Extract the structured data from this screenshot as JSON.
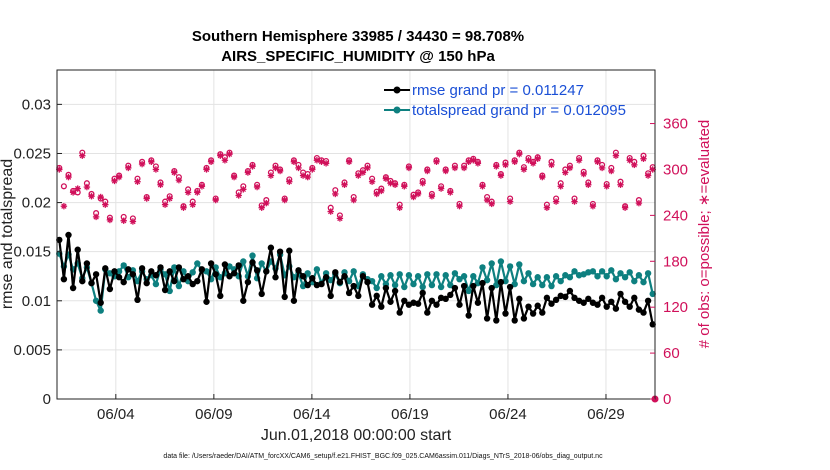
{
  "chart_data": {
    "type": "line",
    "title": "Southern Hemisphere 33985 / 34430 = 98.708%",
    "subtitle": "AIRS_SPECIFIC_HUMIDITY @ 150 hPa",
    "xlabel": "Jun.01,2018 00:00:00 start",
    "ylabel": "rmse and totalspread",
    "ylabel_right": "# of obs: o=possible; ∗=evaluated",
    "footer": "data file: /Users/raeder/DAI/ATM_forcXX/CAM6_setup/f.e21.FHIST_BGC.f09_025.CAM6assim.011/Diags_NTrS_2018-06/obs_diag_output.nc",
    "xlim": [
      1,
      31.5
    ],
    "ylim": [
      0,
      0.0335
    ],
    "ylim_right": [
      0,
      430
    ],
    "x_ticks": [
      4,
      9,
      14,
      19,
      24,
      29
    ],
    "x_tick_labels": [
      "06/04",
      "06/09",
      "06/14",
      "06/19",
      "06/24",
      "06/29"
    ],
    "y_ticks": [
      0,
      0.005,
      0.01,
      0.015,
      0.02,
      0.025,
      0.03
    ],
    "y_tick_labels": [
      "0",
      "0.005",
      "0.01",
      "0.015",
      "0.02",
      "0.025",
      "0.03"
    ],
    "y_right_ticks": [
      0,
      60,
      120,
      180,
      240,
      300,
      360
    ],
    "y_right_tick_labels": [
      "0",
      "60",
      "120",
      "180",
      "240",
      "300",
      "360"
    ],
    "grid": true,
    "legend_position": "top-right",
    "series": [
      {
        "name": "rmse grand pr = 0.011247",
        "color": "#000000",
        "axis": "left",
        "values": [
          0.0162,
          0.0122,
          0.0167,
          0.0113,
          0.0152,
          0.012,
          0.0138,
          0.0118,
          0.0127,
          0.0098,
          0.0133,
          0.0112,
          0.013,
          0.0124,
          0.0119,
          0.0132,
          0.0127,
          0.0101,
          0.0133,
          0.0118,
          0.013,
          0.0126,
          0.0134,
          0.0111,
          0.013,
          0.012,
          0.0134,
          0.0122,
          0.0125,
          0.0117,
          0.012,
          0.0132,
          0.0099,
          0.0138,
          0.0127,
          0.0105,
          0.0137,
          0.0125,
          0.0128,
          0.0136,
          0.01,
          0.0119,
          0.0139,
          0.0131,
          0.0107,
          0.013,
          0.0154,
          0.0124,
          0.015,
          0.0104,
          0.0151,
          0.01,
          0.0131,
          0.0125,
          0.0116,
          0.0123,
          0.0116,
          0.0117,
          0.0124,
          0.0105,
          0.0129,
          0.0119,
          0.0125,
          0.0108,
          0.0115,
          0.0105,
          0.0125,
          0.0119,
          0.0096,
          0.0105,
          0.0094,
          0.0113,
          0.0099,
          0.011,
          0.0088,
          0.01,
          0.0096,
          0.0098,
          0.0097,
          0.0108,
          0.0088,
          0.01,
          0.0096,
          0.0103,
          0.0102,
          0.0106,
          0.0113,
          0.0096,
          0.0115,
          0.0085,
          0.0115,
          0.0098,
          0.0118,
          0.0082,
          0.0113,
          0.008,
          0.0119,
          0.0087,
          0.0114,
          0.008,
          0.0102,
          0.0082,
          0.0094,
          0.0087,
          0.0095,
          0.0088,
          0.0103,
          0.0097,
          0.0101,
          0.0105,
          0.0104,
          0.011,
          0.0103,
          0.01,
          0.0098,
          0.0102,
          0.0098,
          0.0096,
          0.0103,
          0.0094,
          0.0099,
          0.0092,
          0.0107,
          0.0099,
          0.0094,
          0.0103,
          0.0091,
          0.0088,
          0.01,
          0.0076
        ]
      },
      {
        "name": "totalspread grand pr = 0.012095",
        "color": "#0e8080",
        "axis": "left",
        "values": [
          0.0148,
          0.0135,
          0.0147,
          0.0132,
          0.0138,
          0.0123,
          0.0134,
          0.0118,
          0.01,
          0.009,
          0.0132,
          0.0128,
          0.0125,
          0.013,
          0.0136,
          0.0124,
          0.0131,
          0.012,
          0.013,
          0.0122,
          0.0126,
          0.0117,
          0.0132,
          0.0127,
          0.011,
          0.0134,
          0.0115,
          0.013,
          0.012,
          0.0129,
          0.0138,
          0.0131,
          0.013,
          0.0122,
          0.0134,
          0.0124,
          0.0128,
          0.0135,
          0.0132,
          0.0125,
          0.014,
          0.0125,
          0.0146,
          0.0123,
          0.0138,
          0.013,
          0.014,
          0.0133,
          0.0147,
          0.0126,
          0.0135,
          0.0124,
          0.0128,
          0.0115,
          0.0128,
          0.0119,
          0.0132,
          0.0118,
          0.0128,
          0.0121,
          0.0127,
          0.0118,
          0.0129,
          0.012,
          0.013,
          0.0115,
          0.0127,
          0.0122,
          0.012,
          0.0113,
          0.0125,
          0.0117,
          0.0126,
          0.0116,
          0.0127,
          0.0114,
          0.0126,
          0.0117,
          0.0125,
          0.0114,
          0.0127,
          0.0116,
          0.0127,
          0.0114,
          0.0126,
          0.0116,
          0.0128,
          0.0122,
          0.0125,
          0.011,
          0.0125,
          0.0118,
          0.0134,
          0.0121,
          0.0138,
          0.0116,
          0.014,
          0.012,
          0.0135,
          0.0117,
          0.0137,
          0.012,
          0.0128,
          0.0117,
          0.0124,
          0.0116,
          0.0124,
          0.0115,
          0.0125,
          0.012,
          0.0126,
          0.0124,
          0.013,
          0.0126,
          0.0127,
          0.0129,
          0.013,
          0.0125,
          0.013,
          0.0125,
          0.0131,
          0.0122,
          0.0128,
          0.0124,
          0.0129,
          0.012,
          0.0126,
          0.0119,
          0.0128,
          0.0107
        ]
      }
    ],
    "obs_possible": [
      302,
      278,
      293,
      272,
      270,
      322,
      282,
      268,
      243,
      262,
      258,
      237,
      288,
      292,
      238,
      305,
      236,
      288,
      310,
      264,
      312,
      304,
      283,
      258,
      265,
      298,
      290,
      252,
      274,
      258,
      272,
      280,
      302,
      312,
      262,
      320,
      316,
      322,
      292,
      270,
      278,
      298,
      306,
      280,
      253,
      260,
      296,
      305,
      300,
      262,
      287,
      312,
      306,
      296,
      294,
      302,
      315,
      312,
      311,
      250,
      273,
      240,
      283,
      312,
      264,
      295,
      299,
      305,
      288,
      271,
      275,
      290,
      285,
      282,
      254,
      280,
      304,
      267,
      270,
      285,
      300,
      268,
      312,
      278,
      300,
      272,
      305,
      255,
      305,
      312,
      314,
      310,
      280,
      264,
      258,
      306,
      294,
      309,
      262,
      312,
      322,
      303,
      315,
      310,
      316,
      292,
      254,
      310,
      262,
      282,
      300,
      305,
      262,
      315,
      297,
      283,
      255,
      312,
      306,
      281,
      302,
      322,
      284,
      252,
      315,
      310,
      260,
      318,
      295,
      303
    ],
    "obs_evaluated": [
      300,
      252,
      290,
      270,
      275,
      318,
      277,
      265,
      238,
      264,
      254,
      234,
      285,
      290,
      233,
      302,
      232,
      284,
      307,
      262,
      310,
      300,
      280,
      254,
      262,
      296,
      286,
      250,
      270,
      254,
      270,
      278,
      300,
      310,
      260,
      318,
      312,
      320,
      290,
      266,
      274,
      296,
      304,
      277,
      250,
      256,
      292,
      302,
      298,
      260,
      284,
      310,
      302,
      292,
      290,
      300,
      312,
      310,
      308,
      245,
      268,
      236,
      280,
      310,
      260,
      292,
      296,
      302,
      284,
      268,
      272,
      288,
      282,
      280,
      250,
      278,
      302,
      264,
      268,
      282,
      298,
      265,
      310,
      275,
      298,
      270,
      302,
      252,
      302,
      310,
      312,
      308,
      278,
      260,
      255,
      304,
      292,
      306,
      258,
      310,
      320,
      300,
      312,
      308,
      314,
      290,
      250,
      306,
      258,
      278,
      296,
      302,
      258,
      312,
      294,
      280,
      252,
      310,
      302,
      278,
      298,
      318,
      280,
      250,
      312,
      306,
      256,
      314,
      292,
      300
    ],
    "obs_color": "#d0105a",
    "annotation_zero_marker_x": 31.5
  }
}
